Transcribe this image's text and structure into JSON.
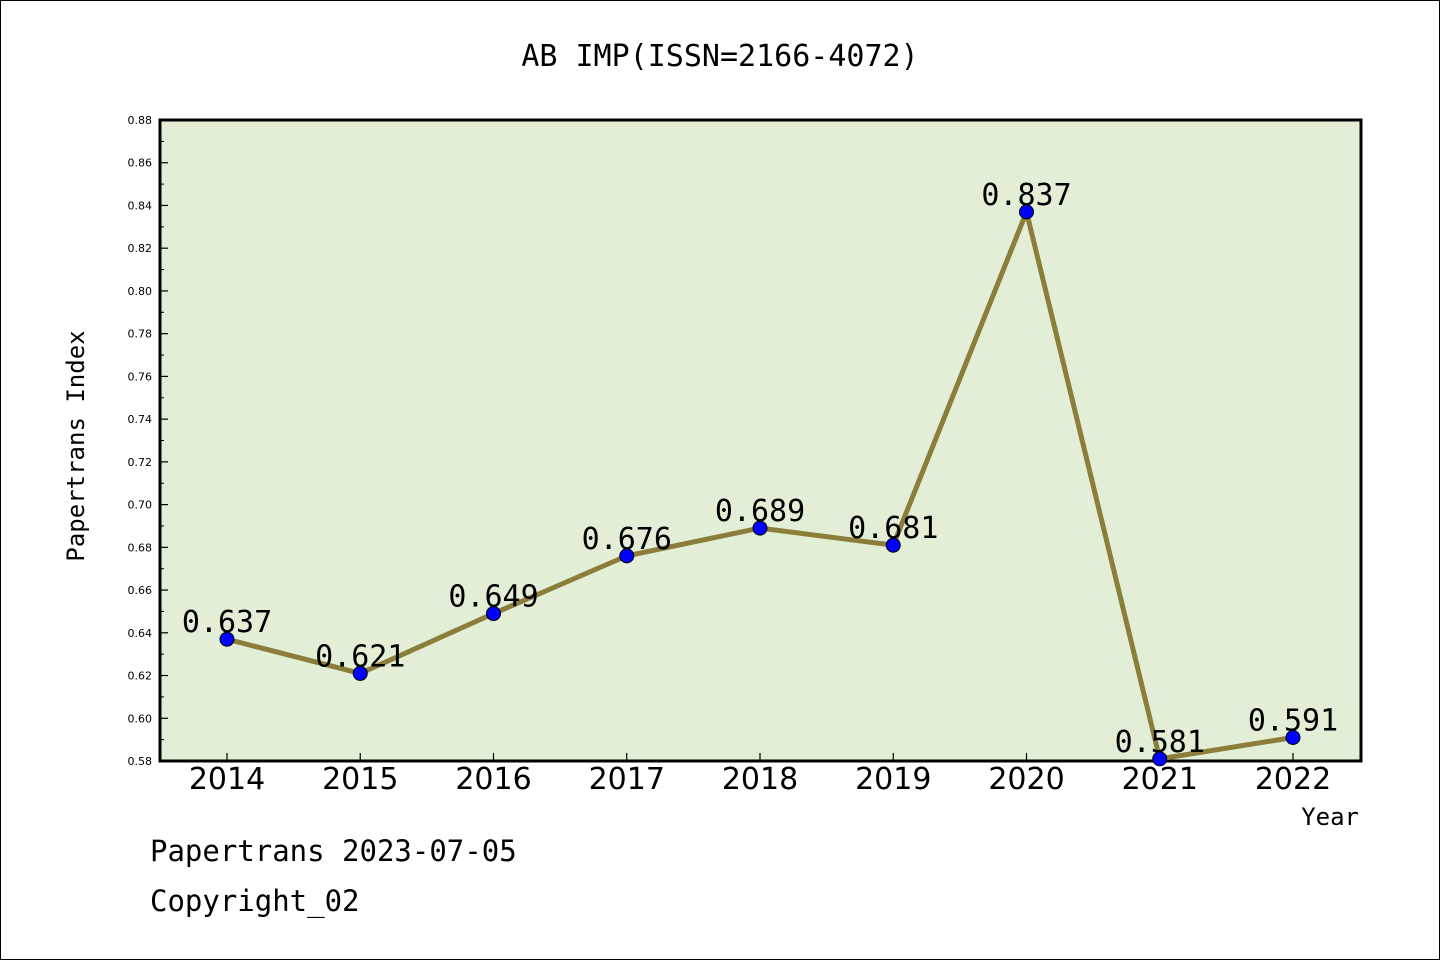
{
  "chart_data": {
    "type": "line",
    "title": "AB IMP(ISSN=2166-4072)",
    "xlabel": "Year",
    "ylabel": "Papertrans Index",
    "categories": [
      "2014",
      "2015",
      "2016",
      "2017",
      "2018",
      "2019",
      "2020",
      "2021",
      "2022"
    ],
    "values": [
      0.637,
      0.621,
      0.649,
      0.676,
      0.689,
      0.681,
      0.837,
      0.581,
      0.591
    ],
    "value_labels": [
      "0.637",
      "0.621",
      "0.649",
      "0.676",
      "0.689",
      "0.681",
      "0.837",
      "0.581",
      "0.591"
    ],
    "ylim": [
      0.58,
      0.88
    ],
    "y_ticks": [
      "0.58",
      "0.60",
      "0.62",
      "0.64",
      "0.66",
      "0.68",
      "0.70",
      "0.72",
      "0.74",
      "0.76",
      "0.78",
      "0.80",
      "0.82",
      "0.84",
      "0.86",
      "0.88"
    ],
    "grid": false,
    "colors": {
      "plot_background": "#e2efd6",
      "line": "#8b7d3a",
      "marker": "#0000ff"
    }
  },
  "footer": {
    "line1": "Papertrans 2023-07-05",
    "line2": "Copyright_02"
  }
}
